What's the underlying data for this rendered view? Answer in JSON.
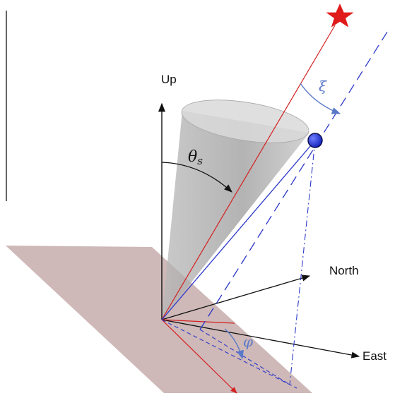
{
  "labels": {
    "up": "Up",
    "north": "North",
    "east": "East",
    "theta": "θ",
    "theta_sub": "s",
    "xi": "ξ",
    "phi": "φ"
  },
  "colors": {
    "ground_plane": "#c9b0b0",
    "cone": "#9e9e9e",
    "red": "#d42020",
    "blue": "#2b38c8",
    "blue_light": "#5a78c8",
    "axis": "#111111",
    "star": "#e01b1b",
    "sphere": "#1f2fd0"
  },
  "icons": {
    "star": "star-icon",
    "sphere": "sphere-icon"
  }
}
